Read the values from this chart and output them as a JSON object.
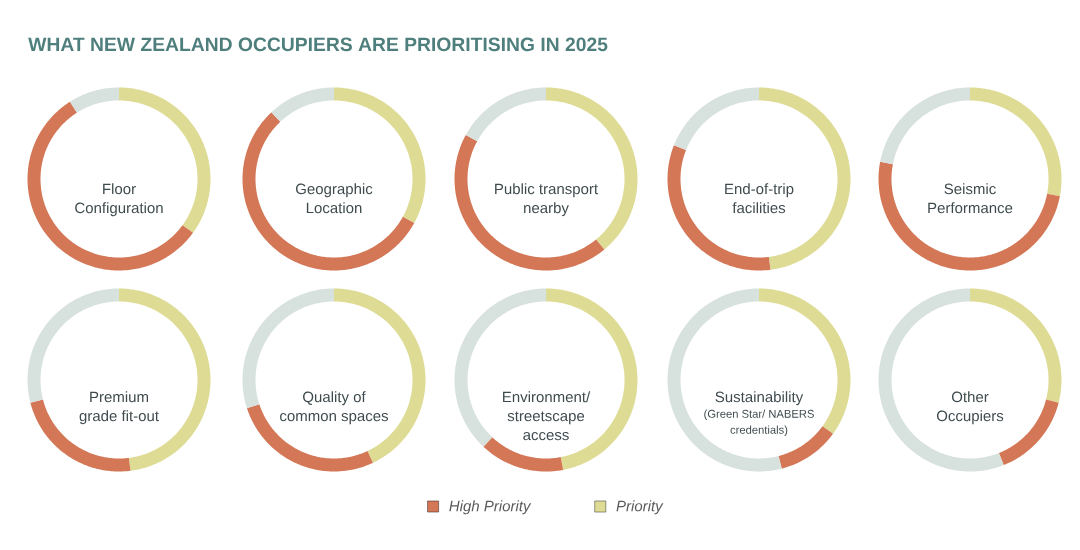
{
  "chart_data": [
    {
      "type": "donut",
      "title": "Floor Configuration",
      "categories": [
        null,
        null,
        null
      ],
      "values": [
        35,
        56,
        9
      ],
      "colors": [
        "#dedb94",
        "#d47757",
        "#d7e1dd"
      ],
      "annotations": [
        "WHAT NEW ZEALAND OCCUPIERS ARE PRIORITISING IN 2025"
      ]
    },
    {
      "type": "donut",
      "title": "Geographic Location",
      "categories": [
        null,
        null,
        null
      ],
      "values": [
        33,
        55,
        12
      ],
      "colors": [
        "#dedb94",
        "#d47757",
        "#d7e1dd"
      ]
    },
    {
      "type": "donut",
      "title": "Public transport nearby",
      "categories": [
        null,
        null,
        null
      ],
      "values": [
        39,
        44,
        17
      ],
      "colors": [
        "#dedb94",
        "#d47757",
        "#d7e1dd"
      ]
    },
    {
      "type": "donut",
      "title": "End-of-trip facilities",
      "categories": [
        null,
        null,
        null
      ],
      "values": [
        48,
        33,
        19
      ],
      "colors": [
        "#dedb94",
        "#d47757",
        "#d7e1dd"
      ]
    },
    {
      "type": "donut",
      "title": "Seismic Performance",
      "categories": [
        null,
        null,
        null
      ],
      "values": [
        28,
        50,
        22
      ],
      "colors": [
        "#dedb94",
        "#d47757",
        "#d7e1dd"
      ]
    },
    {
      "type": "donut",
      "title": "Premium grade fit-out",
      "categories": [
        null,
        null,
        null
      ],
      "values": [
        48,
        23,
        29
      ],
      "colors": [
        "#dedb94",
        "#d47757",
        "#d7e1dd"
      ]
    },
    {
      "type": "donut",
      "title": "Quality of common spaces",
      "categories": [
        null,
        null,
        null
      ],
      "values": [
        43,
        27,
        30
      ],
      "colors": [
        "#dedb94",
        "#d47757",
        "#d7e1dd"
      ]
    },
    {
      "type": "donut",
      "title": "Environment/ streetscape access",
      "categories": [
        "Priority",
        "High Priority",
        null
      ],
      "values": [
        47,
        15,
        38
      ],
      "colors": [
        "#dedb94",
        "#d47757",
        "#d7e1dd"
      ],
      "legend": "bottom"
    },
    {
      "type": "donut",
      "title": "Sustainability",
      "subtitle": "(Green Star/ NABERS credentials)",
      "categories": [
        null,
        null,
        null
      ],
      "values": [
        35,
        11,
        54
      ],
      "colors": [
        "#dedb94",
        "#d47757",
        "#d7e1dd"
      ]
    },
    {
      "type": "donut",
      "title": "Other Occupiers",
      "categories": [
        null,
        null,
        null
      ],
      "values": [
        29,
        15,
        56
      ],
      "colors": [
        "#dedb94",
        "#d47757",
        "#d7e1dd"
      ]
    }
  ]
}
